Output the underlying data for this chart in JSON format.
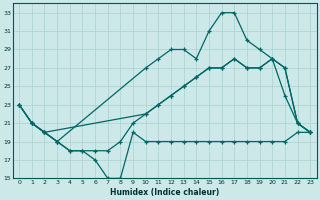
{
  "xlabel": "Humidex (Indice chaleur)",
  "xlim": [
    -0.5,
    23.5
  ],
  "ylim": [
    15,
    34
  ],
  "yticks": [
    15,
    17,
    19,
    21,
    23,
    25,
    27,
    29,
    31,
    33
  ],
  "xticks": [
    0,
    1,
    2,
    3,
    4,
    5,
    6,
    7,
    8,
    9,
    10,
    11,
    12,
    13,
    14,
    15,
    16,
    17,
    18,
    19,
    20,
    21,
    22,
    23
  ],
  "bg_color": "#cce8e8",
  "grid_color": "#aad0d0",
  "line_color": "#006666",
  "series1_x": [
    0,
    1,
    2,
    3,
    4,
    5,
    6,
    7,
    8,
    9,
    10,
    11,
    12,
    13,
    14,
    15,
    16,
    17,
    18,
    19,
    20,
    21,
    22,
    23
  ],
  "series1_y": [
    23,
    21,
    20,
    19,
    18,
    18,
    17,
    15,
    15,
    20,
    19,
    19,
    19,
    19,
    19,
    19,
    19,
    19,
    19,
    19,
    19,
    19,
    20,
    20
  ],
  "series2_x": [
    1,
    2,
    3,
    4,
    5,
    6,
    7,
    8,
    9,
    10,
    11,
    12,
    13,
    14,
    15,
    16,
    17,
    18,
    19,
    20,
    21,
    22,
    23
  ],
  "series2_y": [
    21,
    20,
    19,
    18,
    18,
    18,
    18,
    19,
    21,
    22,
    23,
    24,
    25,
    26,
    27,
    27,
    28,
    27,
    27,
    28,
    27,
    21,
    20
  ],
  "series3_x": [
    0,
    1,
    2,
    10,
    11,
    12,
    13,
    14,
    15,
    16,
    17,
    18,
    19,
    20,
    21,
    22,
    23
  ],
  "series3_y": [
    23,
    21,
    20,
    22,
    23,
    24,
    25,
    26,
    27,
    27,
    28,
    27,
    27,
    28,
    27,
    21,
    20
  ],
  "series4_x": [
    0,
    1,
    2,
    3,
    10,
    11,
    12,
    13,
    14,
    15,
    16,
    17,
    18,
    19,
    20,
    21,
    22,
    23
  ],
  "series4_y": [
    23,
    21,
    20,
    19,
    27,
    28,
    29,
    29,
    28,
    31,
    33,
    33,
    30,
    29,
    28,
    24,
    21,
    20
  ]
}
